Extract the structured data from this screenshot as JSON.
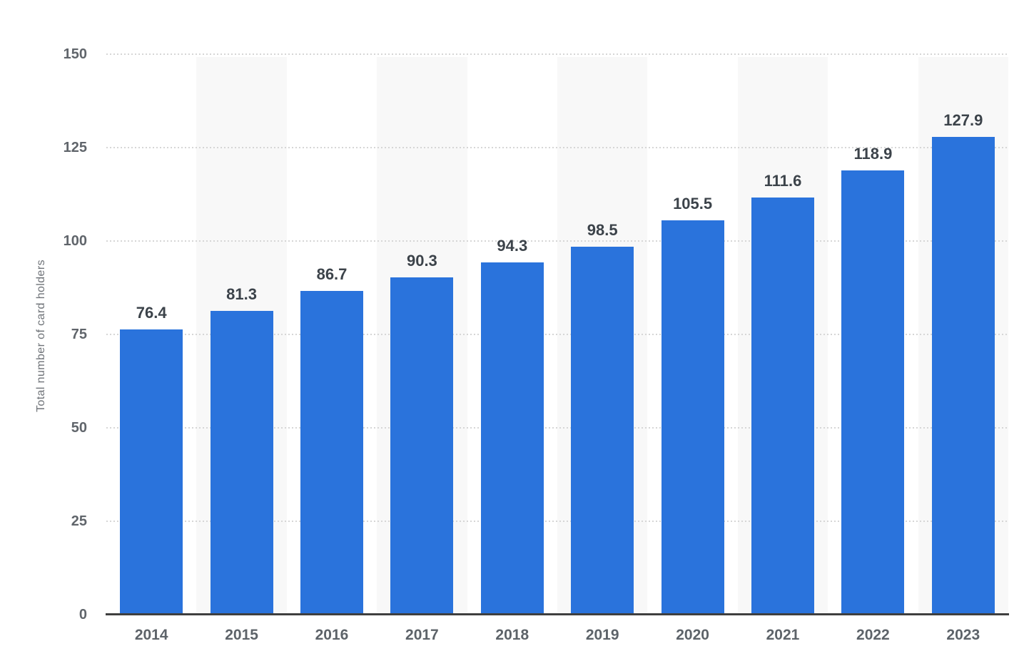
{
  "chart_data": {
    "type": "bar",
    "title": "",
    "xlabel": "",
    "ylabel": "Total number of card holders",
    "categories": [
      "2014",
      "2015",
      "2016",
      "2017",
      "2018",
      "2019",
      "2020",
      "2021",
      "2022",
      "2023"
    ],
    "values": [
      76.4,
      81.3,
      86.7,
      90.3,
      94.3,
      98.5,
      105.5,
      111.6,
      118.9,
      127.9
    ],
    "data_labels": [
      "76.4",
      "81.3",
      "86.7",
      "90.3",
      "94.3",
      "98.5",
      "105.5",
      "111.6",
      "118.9",
      "127.9"
    ],
    "ylim": [
      0,
      150
    ],
    "yticks": [
      0,
      25,
      50,
      75,
      100,
      125,
      150
    ],
    "ytick_labels": [
      "0",
      "25",
      "50",
      "75",
      "100",
      "125",
      "150"
    ],
    "grid": "horizontal-dotted",
    "legend": "none",
    "alternating_column_bands": true
  },
  "style": {
    "bar_color": "#2a73dc",
    "band_color": "#f8f8f8",
    "gridline_color": "#d6d6d6",
    "axis_line_color": "#3f3f3f",
    "value_label_color": "#3c434a",
    "tick_label_color": "#60656b",
    "axis_title_color": "#6f7378",
    "background_color": "#ffffff"
  }
}
